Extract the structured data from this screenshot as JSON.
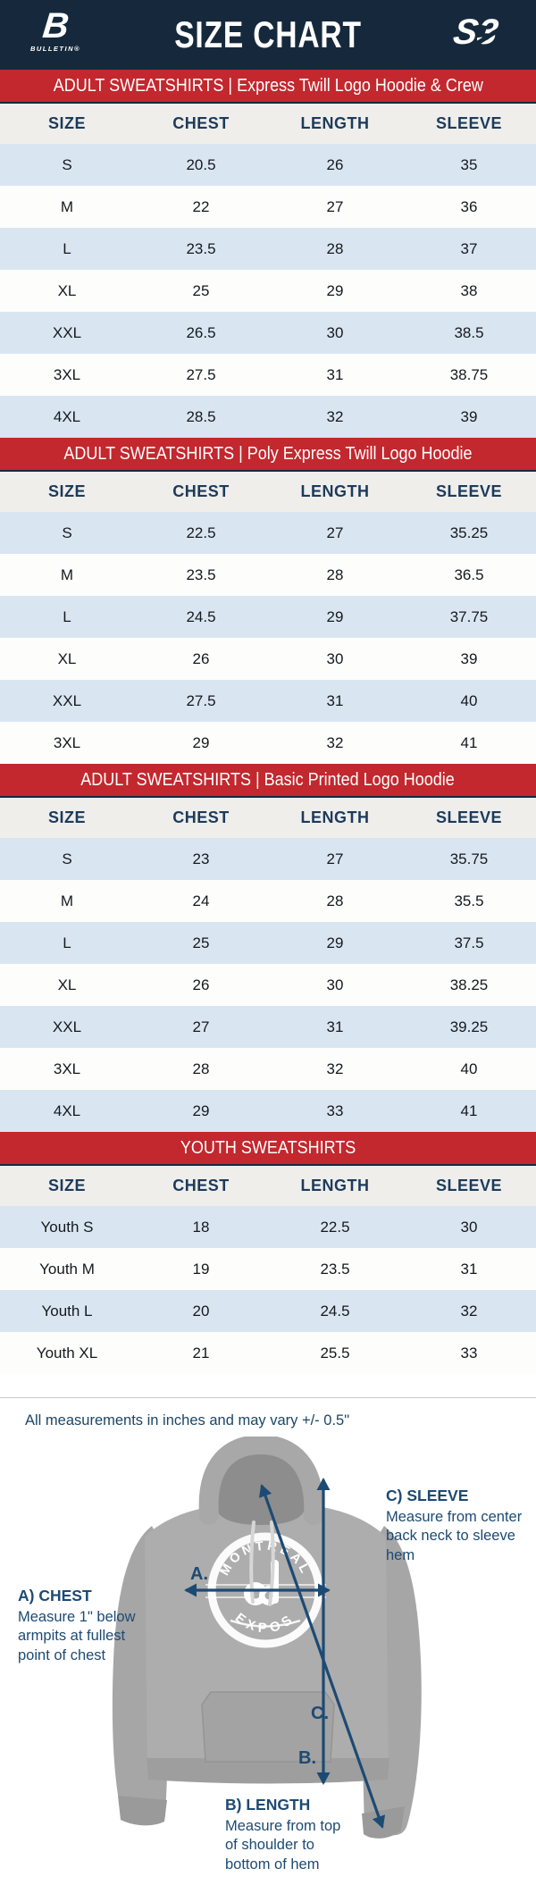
{
  "header": {
    "title": "SIZE CHART",
    "brand_left": {
      "mark": "B",
      "label": "BULLETIN®"
    },
    "brand_right": {
      "label": "S3"
    }
  },
  "colors": {
    "banner_navy": "#16293c",
    "section_red": "#c2282e",
    "row_blue": "#d9e6f2",
    "header_row_bg": "#efeeeb",
    "header_text_navy": "#1c3b5c",
    "diagram_navy": "#1d4a73"
  },
  "tables": [
    {
      "section_title": "ADULT SWEATSHIRTS | Express Twill Logo Hoodie & Crew",
      "columns": [
        "SIZE",
        "CHEST",
        "LENGTH",
        "SLEEVE"
      ],
      "rows": [
        [
          "S",
          "20.5",
          "26",
          "35"
        ],
        [
          "M",
          "22",
          "27",
          "36"
        ],
        [
          "L",
          "23.5",
          "28",
          "37"
        ],
        [
          "XL",
          "25",
          "29",
          "38"
        ],
        [
          "XXL",
          "26.5",
          "30",
          "38.5"
        ],
        [
          "3XL",
          "27.5",
          "31",
          "38.75"
        ],
        [
          "4XL",
          "28.5",
          "32",
          "39"
        ]
      ]
    },
    {
      "section_title": "ADULT SWEATSHIRTS | Poly Express Twill Logo Hoodie",
      "columns": [
        "SIZE",
        "CHEST",
        "LENGTH",
        "SLEEVE"
      ],
      "rows": [
        [
          "S",
          "22.5",
          "27",
          "35.25"
        ],
        [
          "M",
          "23.5",
          "28",
          "36.5"
        ],
        [
          "L",
          "24.5",
          "29",
          "37.75"
        ],
        [
          "XL",
          "26",
          "30",
          "39"
        ],
        [
          "XXL",
          "27.5",
          "31",
          "40"
        ],
        [
          "3XL",
          "29",
          "32",
          "41"
        ]
      ]
    },
    {
      "section_title": "ADULT SWEATSHIRTS | Basic Printed Logo Hoodie",
      "columns": [
        "SIZE",
        "CHEST",
        "LENGTH",
        "SLEEVE"
      ],
      "rows": [
        [
          "S",
          "23",
          "27",
          "35.75"
        ],
        [
          "M",
          "24",
          "28",
          "35.5"
        ],
        [
          "L",
          "25",
          "29",
          "37.5"
        ],
        [
          "XL",
          "26",
          "30",
          "38.25"
        ],
        [
          "XXL",
          "27",
          "31",
          "39.25"
        ],
        [
          "3XL",
          "28",
          "32",
          "40"
        ],
        [
          "4XL",
          "29",
          "33",
          "41"
        ]
      ]
    },
    {
      "section_title": "YOUTH SWEATSHIRTS",
      "columns": [
        "SIZE",
        "CHEST",
        "LENGTH",
        "SLEEVE"
      ],
      "rows": [
        [
          "Youth S",
          "18",
          "22.5",
          "30"
        ],
        [
          "Youth M",
          "19",
          "23.5",
          "31"
        ],
        [
          "Youth L",
          "20",
          "24.5",
          "32"
        ],
        [
          "Youth XL",
          "21",
          "25.5",
          "33"
        ]
      ]
    }
  ],
  "note": "All measurements in inches and may vary +/- 0.5\"",
  "diagram": {
    "chest": {
      "heading": "A) CHEST",
      "body": "Measure 1\" below\narmpits at fullest\npoint of chest"
    },
    "length": {
      "heading": "B) LENGTH",
      "body": "Measure from top\nof shoulder to\nbottom of hem"
    },
    "sleeve": {
      "heading": "C) SLEEVE",
      "body": "Measure from center\nback neck to sleeve hem"
    },
    "arrow_labels": {
      "a": "A.",
      "b": "B.",
      "c": "C."
    },
    "logo": {
      "top": "MONTREAL",
      "bottom": "EXPOS"
    }
  }
}
